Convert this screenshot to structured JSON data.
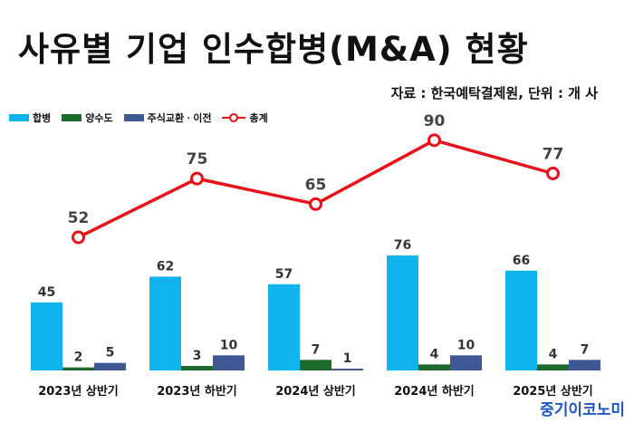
{
  "title": "사유별 기업 인수합병(M&A) 현황",
  "source": "자료 : 한국예탁결제원, 단위 : 개 사",
  "brand": "중기이코노미",
  "colors": {
    "merger": "#0fb4ee",
    "transfer": "#1d6b2b",
    "stock": "#3d5895",
    "total": "#e8121b"
  },
  "chart_data": {
    "type": "bar",
    "categories": [
      "2023년 상반기",
      "2023년 하반기",
      "2024년 상반기",
      "2024년 하반기",
      "2025년 상반기"
    ],
    "series": [
      {
        "name": "합병",
        "type": "bar",
        "values": [
          45,
          62,
          57,
          76,
          66
        ]
      },
      {
        "name": "양수도",
        "type": "bar",
        "values": [
          2,
          3,
          7,
          4,
          4
        ]
      },
      {
        "name": "주식교환ㆍ이전",
        "type": "bar",
        "values": [
          5,
          10,
          1,
          10,
          7
        ]
      },
      {
        "name": "총계",
        "type": "line",
        "values": [
          52,
          75,
          65,
          90,
          77
        ]
      }
    ],
    "legend_position": "top-left"
  }
}
